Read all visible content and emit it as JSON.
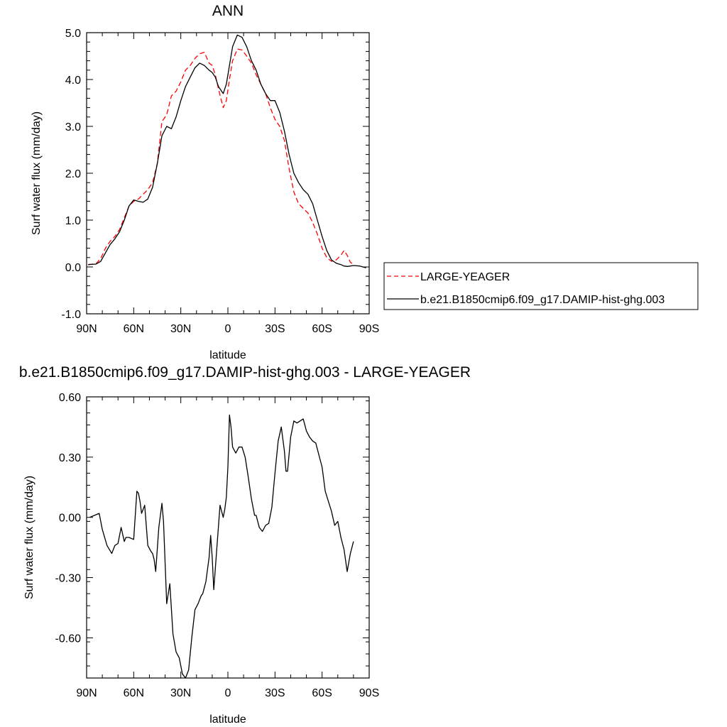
{
  "chart_data": [
    {
      "type": "line",
      "title": "ANN",
      "xlabel": "latitude",
      "ylabel": "Surf water flux (mm/day)",
      "xlim": [
        90,
        -90
      ],
      "ylim": [
        -1.0,
        5.0
      ],
      "x_ticks": [
        {
          "value": 90,
          "label": "90N"
        },
        {
          "value": 60,
          "label": "60N"
        },
        {
          "value": 30,
          "label": "30N"
        },
        {
          "value": 0,
          "label": "0"
        },
        {
          "value": -30,
          "label": "30S"
        },
        {
          "value": -60,
          "label": "60S"
        },
        {
          "value": -90,
          "label": "90S"
        }
      ],
      "y_ticks": [
        {
          "value": 5.0,
          "label": "5.0"
        },
        {
          "value": 4.0,
          "label": "4.0"
        },
        {
          "value": 3.0,
          "label": "3.0"
        },
        {
          "value": 2.0,
          "label": "2.0"
        },
        {
          "value": 1.0,
          "label": "1.0"
        },
        {
          "value": 0.0,
          "label": "0.0"
        },
        {
          "value": -1.0,
          "label": "-1.0"
        }
      ],
      "legend_position": "right",
      "series": [
        {
          "name": "LARGE-YEAGER",
          "color": "#ff0000",
          "dashed": true,
          "x": [
            89,
            84,
            81,
            78,
            75,
            72,
            69,
            66,
            63,
            60,
            57,
            54,
            51,
            48,
            45,
            42,
            39,
            36,
            33,
            30,
            27,
            24,
            21,
            18,
            15,
            12,
            10,
            8,
            6,
            3,
            1,
            -1,
            -3,
            -6,
            -9,
            -12,
            -15,
            -18,
            -21,
            -24,
            -27,
            -30,
            -33,
            -36,
            -39,
            -42,
            -45,
            -48,
            -51,
            -54,
            -57,
            -60,
            -63,
            -66,
            -69,
            -72,
            -74,
            -76,
            -78,
            -80
          ],
          "y": [
            0.05,
            0.07,
            0.18,
            0.4,
            0.55,
            0.65,
            0.8,
            1.05,
            1.3,
            1.4,
            1.45,
            1.55,
            1.65,
            1.8,
            2.2,
            3.1,
            3.25,
            3.65,
            3.75,
            3.95,
            4.2,
            4.3,
            4.45,
            4.55,
            4.58,
            4.35,
            4.3,
            4.1,
            3.8,
            3.4,
            3.55,
            4.0,
            4.4,
            4.65,
            4.63,
            4.5,
            4.35,
            4.1,
            3.9,
            3.7,
            3.4,
            3.15,
            3.0,
            2.7,
            2.1,
            1.6,
            1.35,
            1.25,
            1.15,
            0.95,
            0.7,
            0.4,
            0.2,
            0.12,
            0.15,
            0.25,
            0.35,
            0.25,
            0.1,
            0.05
          ]
        },
        {
          "name": "b.e21.B1850cmip6.f09_g17.DAMIP-hist-ghg.003",
          "color": "#000000",
          "dashed": false,
          "x": [
            89,
            84,
            81,
            78,
            75,
            72,
            69,
            66,
            63,
            60,
            57,
            54,
            51,
            48,
            45,
            42,
            39,
            36,
            33,
            30,
            27,
            24,
            21,
            18,
            15,
            12,
            10,
            8,
            6,
            3,
            1,
            -1,
            -3,
            -6,
            -9,
            -12,
            -15,
            -18,
            -21,
            -24,
            -27,
            -30,
            -33,
            -36,
            -39,
            -42,
            -45,
            -48,
            -51,
            -54,
            -57,
            -60,
            -63,
            -66,
            -69,
            -72,
            -74,
            -76,
            -78,
            -80,
            -84,
            -88
          ],
          "y": [
            0.05,
            0.06,
            0.12,
            0.3,
            0.48,
            0.6,
            0.75,
            1.0,
            1.3,
            1.43,
            1.4,
            1.38,
            1.45,
            1.7,
            2.2,
            2.8,
            3.0,
            2.95,
            3.2,
            3.55,
            3.85,
            4.05,
            4.25,
            4.35,
            4.3,
            4.2,
            4.15,
            4.05,
            3.85,
            3.7,
            3.9,
            4.3,
            4.7,
            4.95,
            4.9,
            4.7,
            4.4,
            4.2,
            3.9,
            3.7,
            3.55,
            3.55,
            3.3,
            2.9,
            2.4,
            2.0,
            1.8,
            1.65,
            1.55,
            1.35,
            1.0,
            0.65,
            0.35,
            0.15,
            0.08,
            0.05,
            0.02,
            0.01,
            0.02,
            0.03,
            0.02,
            -0.02
          ]
        }
      ]
    },
    {
      "type": "line",
      "title": "b.e21.B1850cmip6.f09_g17.DAMIP-hist-ghg.003 - LARGE-YEAGER",
      "xlabel": "latitude",
      "ylabel": "Surf water flux (mm/day)",
      "xlim": [
        90,
        -90
      ],
      "ylim": [
        -0.8,
        0.6
      ],
      "x_ticks": [
        {
          "value": 90,
          "label": "90N"
        },
        {
          "value": 60,
          "label": "60N"
        },
        {
          "value": 30,
          "label": "30N"
        },
        {
          "value": 0,
          "label": "0"
        },
        {
          "value": -30,
          "label": "30S"
        },
        {
          "value": -60,
          "label": "60S"
        },
        {
          "value": -90,
          "label": "90S"
        }
      ],
      "y_ticks": [
        {
          "value": 0.6,
          "label": "0.60"
        },
        {
          "value": 0.3,
          "label": "0.30"
        },
        {
          "value": 0.0,
          "label": "0.00"
        },
        {
          "value": -0.3,
          "label": "-0.30"
        },
        {
          "value": -0.6,
          "label": "-0.60"
        }
      ],
      "series": [
        {
          "color": "#000000",
          "dashed": false,
          "x": [
            88,
            85,
            82,
            80,
            77,
            74,
            72,
            70,
            68,
            66,
            65,
            63,
            60,
            58,
            57,
            56,
            55,
            53,
            51,
            49,
            48,
            47,
            46,
            44,
            42,
            41,
            39,
            37,
            35,
            33,
            31,
            29,
            27,
            25,
            23,
            21,
            19,
            17,
            16,
            14,
            12,
            11,
            10,
            9,
            7,
            5,
            3,
            2,
            1,
            0,
            -1,
            -2,
            -3,
            -5,
            -7,
            -9,
            -11,
            -13,
            -15,
            -17,
            -18,
            -20,
            -22,
            -24,
            -26,
            -28,
            -30,
            -32,
            -34,
            -36,
            -37,
            -38,
            -40,
            -42,
            -44,
            -46,
            -48,
            -50,
            -52,
            -54,
            -56,
            -58,
            -60,
            -62,
            -64,
            -66,
            -68,
            -70,
            -72,
            -74,
            -76,
            -78,
            -80
          ],
          "y": [
            0.0,
            0.01,
            0.02,
            -0.06,
            -0.14,
            -0.18,
            -0.14,
            -0.13,
            -0.05,
            -0.12,
            -0.1,
            -0.1,
            -0.11,
            0.13,
            0.12,
            0.08,
            0.02,
            0.06,
            -0.14,
            -0.17,
            -0.18,
            -0.21,
            -0.27,
            -0.05,
            0.07,
            -0.02,
            -0.43,
            -0.33,
            -0.58,
            -0.67,
            -0.7,
            -0.78,
            -0.8,
            -0.76,
            -0.6,
            -0.46,
            -0.43,
            -0.39,
            -0.38,
            -0.32,
            -0.2,
            -0.09,
            -0.2,
            -0.36,
            -0.15,
            0.06,
            0.0,
            0.04,
            0.1,
            0.25,
            0.51,
            0.45,
            0.35,
            0.32,
            0.35,
            0.35,
            0.3,
            0.2,
            0.09,
            0.01,
            0.01,
            -0.05,
            -0.07,
            -0.04,
            -0.03,
            0.05,
            0.22,
            0.38,
            0.45,
            0.33,
            0.23,
            0.23,
            0.4,
            0.48,
            0.47,
            0.48,
            0.49,
            0.43,
            0.4,
            0.38,
            0.37,
            0.31,
            0.25,
            0.13,
            0.08,
            0.03,
            -0.04,
            -0.02,
            -0.1,
            -0.16,
            -0.27,
            -0.18,
            -0.12
          ]
        }
      ]
    }
  ]
}
